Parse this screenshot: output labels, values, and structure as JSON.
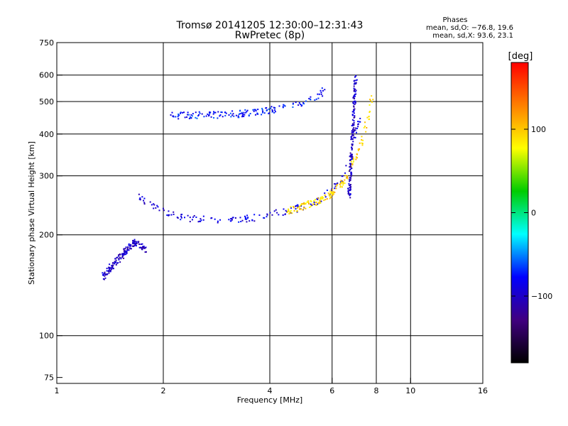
{
  "chart_data": {
    "type": "scatter",
    "title": "Tromsø 20141205 12:30:00–12:31:43",
    "subtitle": "RwPretec (8p)",
    "xlabel": "Frequency [MHz]",
    "ylabel": "Stationary phase Virtual Height [km]",
    "x_scale": "log",
    "y_scale": "log",
    "xlim": [
      1,
      16
    ],
    "ylim": [
      72,
      750
    ],
    "x_ticks": [
      1,
      2,
      4,
      6,
      8,
      10,
      16
    ],
    "x_tick_labels": [
      "1",
      "2",
      "4",
      "6",
      "8",
      "10",
      "16"
    ],
    "y_ticks": [
      75,
      100,
      200,
      300,
      400,
      500,
      600,
      750
    ],
    "y_tick_labels": [
      "75",
      "100",
      "200",
      "300",
      "400",
      "500",
      "600",
      "750"
    ],
    "x_gridlines": [
      2,
      4,
      6,
      8,
      10
    ],
    "y_gridlines": [
      100,
      200,
      300,
      400,
      500,
      600
    ],
    "grid": true,
    "phase_stats": {
      "title": "Phases",
      "line_o": "mean, sd,O: −76.8, 19.6",
      "line_x": "mean, sd,X:  93.6, 23.1"
    },
    "colorbar": {
      "label": "[deg]",
      "range": [
        -180,
        180
      ],
      "ticks": [
        100,
        0,
        -100
      ],
      "tick_labels": [
        "100",
        "0",
        "−100"
      ],
      "colors": [
        "#ff0000",
        "#ff8000",
        "#ffff00",
        "#00cc00",
        "#00ffff",
        "#0000ff",
        "#400080",
        "#000000"
      ]
    },
    "traces": [
      {
        "x": [
          2.1,
          2.5,
          3.0,
          3.5,
          4.0,
          4.5,
          5.0,
          5.5,
          5.8
        ],
        "y": [
          455,
          455,
          455,
          462,
          470,
          480,
          495,
          520,
          550
        ],
        "phase": -75
      },
      {
        "x": [
          1.7,
          1.9,
          2.1,
          2.4,
          2.8,
          3.2,
          3.7,
          4.2,
          4.8,
          5.4,
          6.0,
          6.4,
          6.8,
          7.0,
          7.3
        ],
        "y": [
          260,
          242,
          230,
          224,
          220,
          221,
          226,
          232,
          240,
          250,
          270,
          295,
          340,
          400,
          480
        ],
        "phase": -90
      },
      {
        "x": [
          4.5,
          5.0,
          5.5,
          6.0,
          6.5,
          6.9,
          7.3,
          7.6,
          7.8
        ],
        "y": [
          236,
          244,
          252,
          265,
          290,
          330,
          380,
          450,
          520
        ],
        "phase": 95
      },
      {
        "x": [
          1.35,
          1.5,
          1.65,
          1.8
        ],
        "y": [
          150,
          170,
          190,
          180
        ],
        "phase": -100
      },
      {
        "x": [
          6.7,
          6.8,
          6.9,
          7.0
        ],
        "y": [
          260,
          350,
          450,
          600
        ],
        "phase": -100
      }
    ]
  }
}
